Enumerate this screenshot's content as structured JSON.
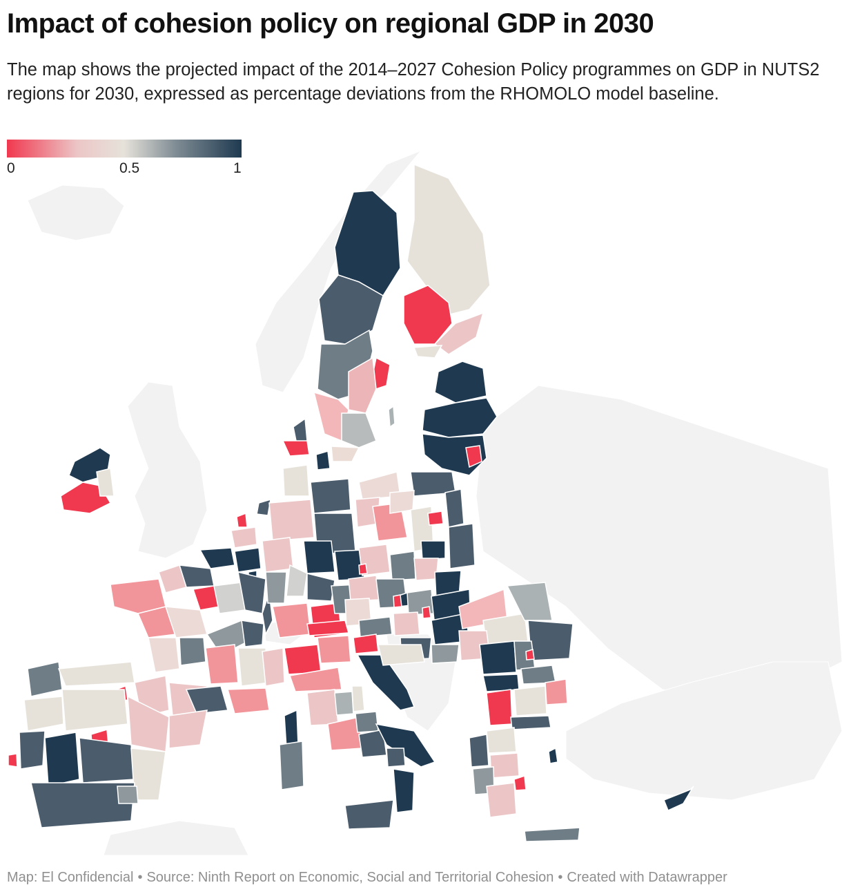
{
  "title": "Impact of cohesion policy on regional GDP in 2030",
  "subtitle": "The map shows the projected impact of the 2014–2027 Cohesion Policy programmes on GDP in NUTS2 regions for 2030, expressed as percentage deviations from the RHOMOLO model baseline.",
  "legend": {
    "min_label": "0",
    "mid_label": "0.5",
    "max_label": "1",
    "colors": [
      "#f0384f",
      "#ecc6c7",
      "#e6e2da",
      "#7f8c94",
      "#1f3a50"
    ]
  },
  "footer": {
    "map_credit": "Map: El Confidencial",
    "source": "Source: Ninth Report on Economic, Social and Territorial Cohesion",
    "created_with": "Created with Datawrapper",
    "separator": "•"
  },
  "colors": {
    "low": "#f0384f",
    "mid_low": "#ecc6c7",
    "mid": "#e6e2da",
    "mid_high": "#7f8c94",
    "high": "#1f3a50",
    "non_eu": "#f2f2f2",
    "border": "#ffffff"
  }
}
